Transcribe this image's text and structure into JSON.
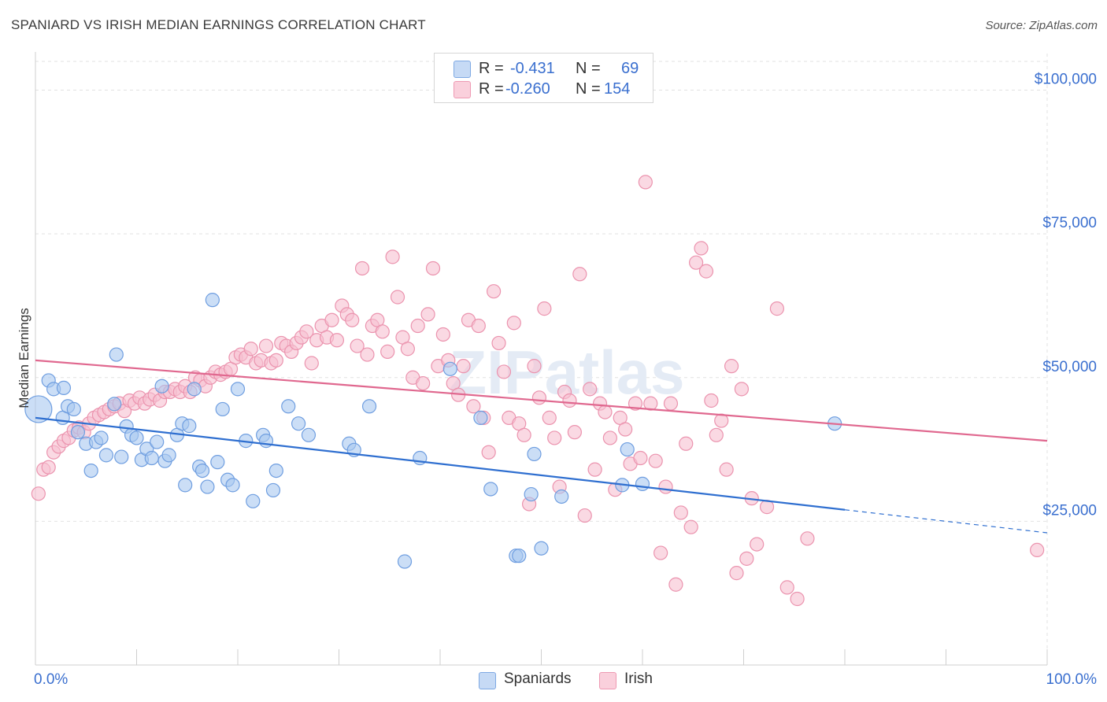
{
  "header": {
    "title": "SPANIARD VS IRISH MEDIAN EARNINGS CORRELATION CHART",
    "source": "Source: ZipAtlas.com"
  },
  "legend": {
    "rows": [
      {
        "r_label": "R =",
        "r_value": "-0.431",
        "n_label": "N =",
        "n_value": "69"
      },
      {
        "r_label": "R =",
        "r_value": "-0.260",
        "n_label": "N =",
        "n_value": "154"
      }
    ],
    "series": [
      "Spaniards",
      "Irish"
    ]
  },
  "colors": {
    "spaniards_fill": "#a9c8f0",
    "spaniards_stroke": "#6f9ee0",
    "spaniards_line": "#2f6fd0",
    "irish_fill": "#f7bfd0",
    "irish_stroke": "#eb93ae",
    "irish_line": "#e0688f",
    "tick_label": "#3a6fcf",
    "grid": "#e2e2e2"
  },
  "chart_data": {
    "type": "scatter",
    "title": "SPANIARD VS IRISH MEDIAN EARNINGS CORRELATION CHART",
    "ylabel": "Median Earnings",
    "xlabel": "",
    "xlim": [
      0,
      100
    ],
    "ylim": [
      0,
      105000
    ],
    "x_tick_labels": [
      "0.0%",
      "100.0%"
    ],
    "y_ticks": [
      25000,
      50000,
      75000,
      100000
    ],
    "y_tick_labels": [
      "$25,000",
      "$50,000",
      "$75,000",
      "$100,000"
    ],
    "grid": true,
    "legend_position": "top-center",
    "series": [
      {
        "name": "Spaniards",
        "trend": {
          "x0": 0,
          "y0": 43000,
          "x1": 80,
          "y1": 27000,
          "dashed_to_x": 100,
          "dashed_to_y": 23000
        },
        "points": [
          [
            0.3,
            44500
          ],
          [
            1.3,
            49500
          ],
          [
            1.8,
            48000
          ],
          [
            2.8,
            48200
          ],
          [
            2.7,
            43000
          ],
          [
            3.2,
            45000
          ],
          [
            3.8,
            44500
          ],
          [
            4.2,
            40500
          ],
          [
            5.0,
            38500
          ],
          [
            5.5,
            33800
          ],
          [
            6.0,
            38800
          ],
          [
            6.5,
            39500
          ],
          [
            7.0,
            36500
          ],
          [
            7.8,
            45400
          ],
          [
            8.0,
            54000
          ],
          [
            8.5,
            36200
          ],
          [
            9.0,
            41500
          ],
          [
            9.5,
            40000
          ],
          [
            10.0,
            39500
          ],
          [
            10.5,
            35700
          ],
          [
            11.0,
            37600
          ],
          [
            11.5,
            36000
          ],
          [
            12.0,
            38800
          ],
          [
            12.5,
            48500
          ],
          [
            12.8,
            35500
          ],
          [
            13.2,
            36500
          ],
          [
            14.0,
            40000
          ],
          [
            14.5,
            42000
          ],
          [
            14.8,
            31300
          ],
          [
            15.2,
            41600
          ],
          [
            15.7,
            48000
          ],
          [
            16.2,
            34500
          ],
          [
            16.5,
            33800
          ],
          [
            17.0,
            31000
          ],
          [
            17.5,
            63500
          ],
          [
            18.0,
            35300
          ],
          [
            18.5,
            44500
          ],
          [
            19.0,
            32200
          ],
          [
            19.5,
            31300
          ],
          [
            20.0,
            48000
          ],
          [
            20.8,
            39000
          ],
          [
            21.5,
            28500
          ],
          [
            22.5,
            40000
          ],
          [
            22.8,
            39000
          ],
          [
            23.5,
            30400
          ],
          [
            23.8,
            33800
          ],
          [
            25.0,
            45000
          ],
          [
            26.0,
            42000
          ],
          [
            27.0,
            40000
          ],
          [
            31.0,
            38500
          ],
          [
            31.5,
            37400
          ],
          [
            33.0,
            45000
          ],
          [
            36.5,
            18000
          ],
          [
            38.0,
            36000
          ],
          [
            41.0,
            51500
          ],
          [
            44.0,
            43000
          ],
          [
            45.0,
            30600
          ],
          [
            47.5,
            19000
          ],
          [
            47.8,
            19000
          ],
          [
            49.0,
            29700
          ],
          [
            49.3,
            36700
          ],
          [
            50.0,
            20300
          ],
          [
            52.0,
            29300
          ],
          [
            58.0,
            31300
          ],
          [
            58.5,
            37500
          ],
          [
            60.0,
            31500
          ],
          [
            79.0,
            42000
          ]
        ]
      },
      {
        "name": "Irish",
        "trend": {
          "x0": 0,
          "y0": 53000,
          "x1": 100,
          "y1": 39000
        },
        "points": [
          [
            0.3,
            29800
          ],
          [
            0.8,
            34000
          ],
          [
            1.3,
            34400
          ],
          [
            1.8,
            37000
          ],
          [
            2.3,
            38000
          ],
          [
            2.8,
            39000
          ],
          [
            3.3,
            39500
          ],
          [
            3.8,
            40800
          ],
          [
            4.3,
            41300
          ],
          [
            4.8,
            40500
          ],
          [
            5.3,
            42000
          ],
          [
            5.8,
            43000
          ],
          [
            6.3,
            43500
          ],
          [
            6.8,
            44000
          ],
          [
            7.3,
            44500
          ],
          [
            7.8,
            45000
          ],
          [
            8.3,
            45500
          ],
          [
            8.8,
            44200
          ],
          [
            9.3,
            46000
          ],
          [
            9.8,
            45500
          ],
          [
            10.3,
            46500
          ],
          [
            10.8,
            45500
          ],
          [
            11.3,
            46200
          ],
          [
            11.8,
            47000
          ],
          [
            12.3,
            46000
          ],
          [
            12.8,
            47500
          ],
          [
            13.3,
            47500
          ],
          [
            13.8,
            48000
          ],
          [
            14.3,
            47500
          ],
          [
            14.8,
            48500
          ],
          [
            15.3,
            47500
          ],
          [
            15.8,
            50000
          ],
          [
            16.3,
            49500
          ],
          [
            16.8,
            48500
          ],
          [
            17.3,
            50000
          ],
          [
            17.8,
            51000
          ],
          [
            18.3,
            50500
          ],
          [
            18.8,
            51000
          ],
          [
            19.3,
            51500
          ],
          [
            19.8,
            53500
          ],
          [
            20.3,
            54000
          ],
          [
            20.8,
            53500
          ],
          [
            21.3,
            55000
          ],
          [
            21.8,
            52500
          ],
          [
            22.3,
            53000
          ],
          [
            22.8,
            55500
          ],
          [
            23.3,
            52500
          ],
          [
            23.8,
            53000
          ],
          [
            24.3,
            56000
          ],
          [
            24.8,
            55500
          ],
          [
            25.3,
            54500
          ],
          [
            25.8,
            56000
          ],
          [
            26.3,
            57000
          ],
          [
            26.8,
            58000
          ],
          [
            27.3,
            52500
          ],
          [
            27.8,
            56500
          ],
          [
            28.3,
            59000
          ],
          [
            28.8,
            57000
          ],
          [
            29.3,
            60000
          ],
          [
            29.8,
            56500
          ],
          [
            30.3,
            62500
          ],
          [
            30.8,
            61000
          ],
          [
            31.3,
            60000
          ],
          [
            31.8,
            55500
          ],
          [
            32.3,
            69000
          ],
          [
            32.8,
            54000
          ],
          [
            33.3,
            59000
          ],
          [
            33.8,
            60000
          ],
          [
            34.3,
            58000
          ],
          [
            34.8,
            54500
          ],
          [
            35.3,
            71000
          ],
          [
            35.8,
            64000
          ],
          [
            36.3,
            57000
          ],
          [
            36.8,
            55000
          ],
          [
            37.3,
            50000
          ],
          [
            37.8,
            59000
          ],
          [
            38.3,
            49000
          ],
          [
            38.8,
            61000
          ],
          [
            39.3,
            69000
          ],
          [
            39.8,
            52000
          ],
          [
            40.3,
            57500
          ],
          [
            40.8,
            53000
          ],
          [
            41.3,
            49000
          ],
          [
            41.8,
            47000
          ],
          [
            42.3,
            52000
          ],
          [
            42.8,
            60000
          ],
          [
            43.3,
            45000
          ],
          [
            43.8,
            59000
          ],
          [
            44.3,
            43000
          ],
          [
            44.8,
            37000
          ],
          [
            45.3,
            65000
          ],
          [
            45.8,
            56000
          ],
          [
            46.3,
            51000
          ],
          [
            46.8,
            43000
          ],
          [
            47.3,
            59500
          ],
          [
            47.8,
            42000
          ],
          [
            48.3,
            40000
          ],
          [
            48.8,
            28000
          ],
          [
            49.3,
            52000
          ],
          [
            49.8,
            46500
          ],
          [
            50.3,
            62000
          ],
          [
            50.8,
            43000
          ],
          [
            51.3,
            39500
          ],
          [
            51.8,
            31000
          ],
          [
            52.3,
            47500
          ],
          [
            52.8,
            46000
          ],
          [
            53.3,
            40500
          ],
          [
            53.8,
            68000
          ],
          [
            54.3,
            26000
          ],
          [
            54.8,
            48000
          ],
          [
            55.3,
            34000
          ],
          [
            55.8,
            45500
          ],
          [
            56.3,
            44000
          ],
          [
            56.8,
            39500
          ],
          [
            57.3,
            30500
          ],
          [
            57.8,
            43000
          ],
          [
            58.3,
            41000
          ],
          [
            58.8,
            35000
          ],
          [
            59.3,
            45500
          ],
          [
            59.8,
            36000
          ],
          [
            60.3,
            84000
          ],
          [
            60.8,
            45500
          ],
          [
            61.3,
            35500
          ],
          [
            61.8,
            19500
          ],
          [
            62.3,
            31000
          ],
          [
            62.8,
            45500
          ],
          [
            63.3,
            14000
          ],
          [
            63.8,
            26500
          ],
          [
            64.3,
            38500
          ],
          [
            64.8,
            24000
          ],
          [
            65.3,
            70000
          ],
          [
            65.8,
            72500
          ],
          [
            66.3,
            68500
          ],
          [
            66.8,
            46000
          ],
          [
            67.3,
            40000
          ],
          [
            67.8,
            42500
          ],
          [
            68.3,
            34000
          ],
          [
            68.8,
            52000
          ],
          [
            69.3,
            16000
          ],
          [
            69.8,
            48000
          ],
          [
            70.3,
            18500
          ],
          [
            70.8,
            29000
          ],
          [
            71.3,
            21000
          ],
          [
            72.3,
            27500
          ],
          [
            73.3,
            62000
          ],
          [
            74.3,
            13500
          ],
          [
            75.3,
            11500
          ],
          [
            76.3,
            22000
          ],
          [
            99.0,
            20000
          ]
        ]
      }
    ]
  }
}
